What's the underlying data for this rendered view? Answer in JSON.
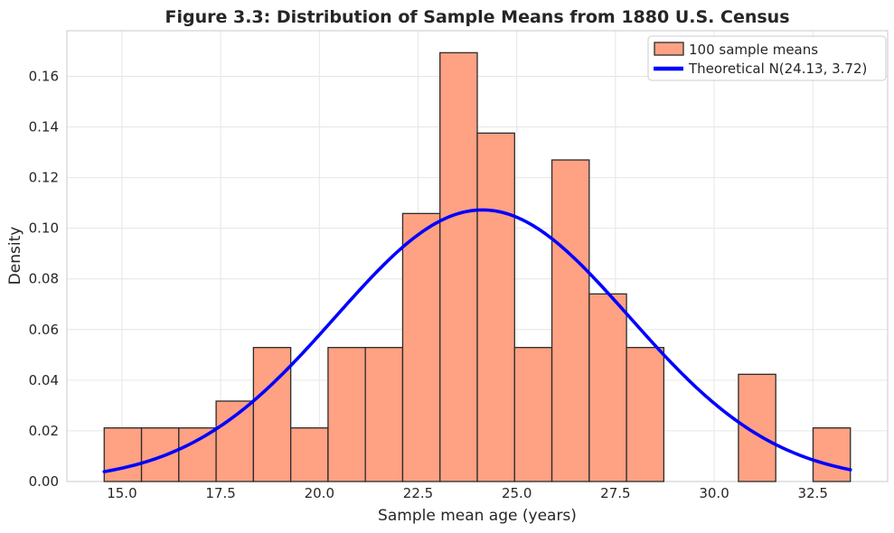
{
  "chart_data": {
    "type": "bar",
    "subtype": "histogram_with_density_curve",
    "title": "Figure 3.3: Distribution of Sample Means from 1880 U.S. Census",
    "xlabel": "Sample mean age (years)",
    "ylabel": "Density",
    "xlim": [
      13.605,
      34.395
    ],
    "ylim": [
      0,
      0.178
    ],
    "grid": true,
    "x_ticks": [
      15.0,
      17.5,
      20.0,
      22.5,
      25.0,
      27.5,
      30.0,
      32.5
    ],
    "x_tick_labels": [
      "15.0",
      "17.5",
      "20.0",
      "22.5",
      "25.0",
      "27.5",
      "30.0",
      "32.5"
    ],
    "y_ticks": [
      0.0,
      0.02,
      0.04,
      0.06,
      0.08,
      0.1,
      0.12,
      0.14,
      0.16
    ],
    "y_tick_labels": [
      "0.00",
      "0.02",
      "0.04",
      "0.06",
      "0.08",
      "0.10",
      "0.12",
      "0.14",
      "0.16"
    ],
    "histogram": {
      "label": "100 sample means",
      "n_samples": 100,
      "bin_start": 14.55,
      "bin_width": 0.945,
      "counts": [
        2,
        2,
        2,
        3,
        5,
        2,
        5,
        5,
        10,
        16,
        13,
        5,
        12,
        7,
        5,
        0,
        0,
        4,
        0,
        2
      ],
      "densities": [
        0.02116,
        0.02116,
        0.02116,
        0.03175,
        0.05291,
        0.02116,
        0.05291,
        0.05291,
        0.10582,
        0.16931,
        0.13757,
        0.05291,
        0.12698,
        0.07407,
        0.05291,
        0,
        0,
        0.04233,
        0,
        0.02116
      ],
      "fill_color": "#FFA183",
      "edge_color": "#2b2b2b"
    },
    "curve": {
      "label": "Theoretical N(24.13, 3.72)",
      "distribution": "normal",
      "mu": 24.13,
      "sigma": 3.72,
      "x_range": [
        14.55,
        33.45
      ],
      "peak_density": 0.1072,
      "color": "#0000FF",
      "line_width": 3.6
    },
    "legend": {
      "position": "upper right",
      "items": [
        {
          "label": "100 sample means",
          "swatch": "bar-swatch"
        },
        {
          "label": "Theoretical N(24.13, 3.72)",
          "swatch": "line-swatch"
        }
      ]
    }
  }
}
